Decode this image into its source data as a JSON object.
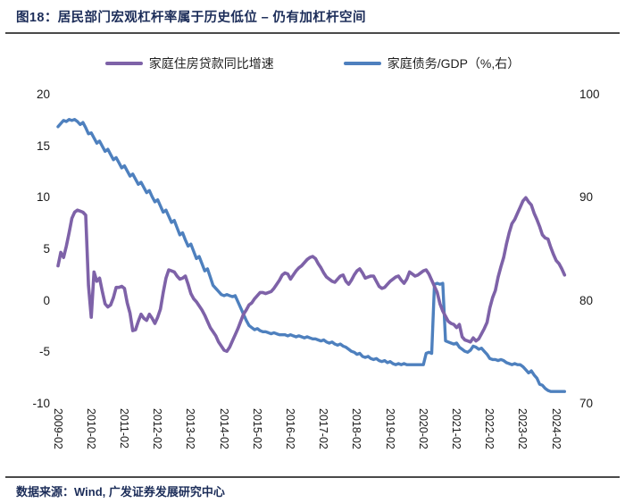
{
  "header": {
    "title": "图18：居民部门宏观杠杆率属于历史低位 – 仍有加杠杆空间"
  },
  "footer": {
    "source": "数据来源：Wind, 广发证券发展研究中心"
  },
  "colors": {
    "purple": "#7E62A8",
    "blue": "#4E80BE",
    "title_navy": "#1c2d59"
  },
  "chart_data": {
    "type": "line",
    "title": "居民部门宏观杠杆率属于历史低位，仍有加杠杆空间",
    "x_start": "2009-02",
    "x_interval": "monthly",
    "x_count": 184,
    "x_tick_labels": [
      "2009-02",
      "2010-02",
      "2011-02",
      "2012-02",
      "2013-02",
      "2014-02",
      "2015-02",
      "2016-02",
      "2017-02",
      "2018-02",
      "2019-02",
      "2020-02",
      "2021-02",
      "2022-02",
      "2023-02",
      "2024-02"
    ],
    "left_axis": {
      "ticks": [
        20,
        15,
        10,
        5,
        0,
        -5,
        -10
      ],
      "range": [
        -10,
        20
      ]
    },
    "right_axis": {
      "ticks": [
        100,
        90,
        80,
        70
      ],
      "range": [
        70,
        100
      ]
    },
    "grid": false,
    "legend_position": "top-center",
    "series": [
      {
        "name": "家庭住房贷款同比增速",
        "axis": "left",
        "color": "#7E62A8",
        "values": [
          3.4,
          4.7,
          4.2,
          5.3,
          6.6,
          8.0,
          8.6,
          8.8,
          8.7,
          8.6,
          8.3,
          1.5,
          -1.6,
          2.8,
          1.9,
          2.2,
          0.9,
          -0.3,
          -0.6,
          -0.4,
          0.3,
          1.3,
          1.3,
          1.4,
          1.2,
          -0.2,
          -1.2,
          -2.9,
          -2.8,
          -2.0,
          -1.3,
          -1.7,
          -1.9,
          -1.3,
          -1.7,
          -2.2,
          -1.6,
          -0.8,
          0.8,
          2.2,
          3.0,
          2.9,
          2.8,
          2.4,
          2.1,
          2.2,
          2.4,
          1.6,
          0.7,
          0.2,
          -0.1,
          -0.5,
          -0.9,
          -1.4,
          -2.0,
          -2.6,
          -3.0,
          -3.4,
          -4.0,
          -4.4,
          -4.8,
          -4.9,
          -4.5,
          -3.9,
          -3.3,
          -2.7,
          -2.0,
          -1.3,
          -0.9,
          -0.4,
          -0.2,
          0.2,
          0.5,
          0.8,
          0.8,
          0.7,
          0.8,
          0.9,
          1.2,
          1.6,
          2.0,
          2.5,
          2.7,
          2.6,
          2.1,
          2.5,
          2.9,
          3.2,
          3.4,
          3.7,
          4.0,
          4.2,
          4.3,
          4.1,
          3.6,
          3.2,
          2.7,
          2.3,
          2.1,
          1.9,
          1.8,
          2.1,
          2.4,
          2.5,
          1.9,
          1.6,
          2.0,
          2.5,
          2.9,
          3.1,
          2.7,
          2.2,
          2.3,
          2.4,
          2.4,
          1.9,
          1.4,
          1.2,
          1.3,
          1.6,
          1.9,
          2.1,
          2.3,
          2.4,
          2.0,
          1.7,
          2.1,
          2.8,
          2.6,
          2.4,
          2.5,
          2.7,
          2.9,
          3.0,
          2.6,
          2.0,
          1.4,
          0.8,
          -0.3,
          -1.0,
          -1.5,
          -2.0,
          -2.2,
          -2.3,
          -2.6,
          -2.3,
          -3.5,
          -3.8,
          -3.9,
          -4.0,
          -3.6,
          -3.9,
          -3.7,
          -3.2,
          -2.7,
          -2.1,
          -0.7,
          0.3,
          1.0,
          2.3,
          3.3,
          4.2,
          5.5,
          6.6,
          7.5,
          7.9,
          8.5,
          9.1,
          9.7,
          10.0,
          9.6,
          9.3,
          8.5,
          7.9,
          7.2,
          6.4,
          6.1,
          6.0,
          5.2,
          4.5,
          3.9,
          3.6,
          3.1,
          2.5
        ]
      },
      {
        "name": "家庭债务/GDP（%,右）",
        "axis": "right",
        "color": "#4E80BE",
        "values": [
          96.9,
          97.2,
          97.5,
          97.4,
          97.6,
          97.5,
          97.6,
          97.4,
          97.1,
          97.3,
          96.8,
          96.2,
          96.3,
          95.8,
          95.3,
          95.5,
          95.0,
          94.5,
          94.7,
          94.2,
          93.7,
          93.9,
          93.4,
          92.9,
          93.1,
          92.6,
          92.1,
          92.3,
          91.8,
          91.3,
          91.5,
          91.0,
          90.5,
          90.7,
          90.1,
          89.6,
          89.8,
          89.2,
          88.6,
          88.8,
          88.2,
          87.6,
          87.8,
          87.1,
          86.4,
          86.6,
          85.9,
          85.3,
          85.5,
          84.8,
          84.1,
          84.3,
          83.6,
          82.9,
          83.1,
          82.3,
          81.5,
          81.2,
          80.9,
          80.6,
          80.5,
          80.6,
          80.5,
          80.4,
          80.5,
          79.9,
          79.3,
          78.7,
          78.1,
          77.6,
          77.4,
          77.2,
          77.3,
          77.1,
          77.0,
          77.0,
          76.9,
          76.8,
          76.9,
          76.8,
          76.7,
          76.7,
          76.7,
          76.6,
          76.7,
          76.6,
          76.5,
          76.6,
          76.5,
          76.4,
          76.5,
          76.4,
          76.3,
          76.3,
          76.2,
          76.1,
          76.2,
          76.0,
          75.9,
          76.0,
          75.8,
          75.7,
          75.8,
          75.6,
          75.5,
          75.3,
          75.1,
          75.0,
          74.8,
          74.9,
          74.6,
          74.5,
          74.6,
          74.4,
          74.3,
          74.4,
          74.2,
          74.1,
          74.2,
          74.0,
          74.1,
          73.9,
          73.8,
          73.9,
          73.8,
          73.9,
          73.8,
          73.8,
          73.8,
          73.8,
          73.8,
          73.8,
          73.8,
          74.9,
          75.0,
          74.9,
          81.6,
          81.7,
          81.6,
          81.7,
          76.1,
          76.0,
          75.9,
          75.8,
          75.9,
          75.5,
          75.3,
          75.1,
          75.0,
          75.2,
          75.6,
          75.5,
          75.3,
          75.4,
          75.1,
          74.8,
          74.4,
          74.3,
          74.3,
          74.2,
          74.3,
          74.2,
          74.0,
          73.9,
          73.8,
          73.9,
          73.8,
          73.8,
          73.6,
          73.3,
          73.0,
          73.2,
          72.8,
          72.5,
          71.9,
          71.8,
          71.5,
          71.3,
          71.2,
          71.2,
          71.2,
          71.2,
          71.2,
          71.2
        ]
      }
    ]
  }
}
